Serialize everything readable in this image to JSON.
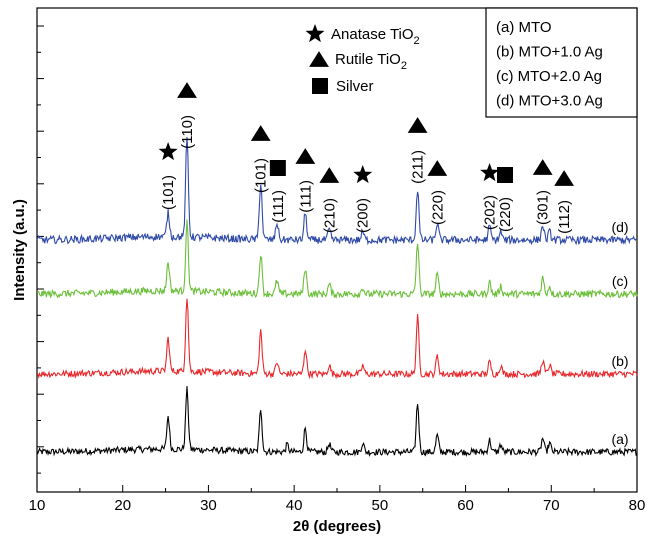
{
  "chart_data": {
    "type": "line",
    "xlabel": "2θ (degrees)",
    "ylabel": "Intensity (a.u.)",
    "xlim": [
      10,
      80
    ],
    "x_ticks": [
      "10",
      "20",
      "30",
      "40",
      "50",
      "60",
      "70",
      "80"
    ],
    "y_ticks_labeled": false,
    "series": [
      {
        "key": "a",
        "name": "(a)",
        "color": "#000000",
        "peaks": [
          [
            25.3,
            0.55
          ],
          [
            27.5,
            1.0
          ],
          [
            36.1,
            0.72
          ],
          [
            39.2,
            0.12
          ],
          [
            41.3,
            0.4
          ],
          [
            44.1,
            0.14
          ],
          [
            48.0,
            0.15
          ],
          [
            54.4,
            0.82
          ],
          [
            56.7,
            0.28
          ],
          [
            62.8,
            0.2
          ],
          [
            64.1,
            0.12
          ],
          [
            69.0,
            0.23
          ],
          [
            69.8,
            0.15
          ]
        ]
      },
      {
        "key": "b",
        "name": "(b)",
        "color": "#e8282c",
        "peaks": [
          [
            25.3,
            0.55
          ],
          [
            27.5,
            1.25
          ],
          [
            36.1,
            0.72
          ],
          [
            38.0,
            0.2
          ],
          [
            41.3,
            0.42
          ],
          [
            44.1,
            0.15
          ],
          [
            48.0,
            0.14
          ],
          [
            54.4,
            0.95
          ],
          [
            56.7,
            0.3
          ],
          [
            62.8,
            0.2
          ],
          [
            64.1,
            0.14
          ],
          [
            69.0,
            0.23
          ],
          [
            69.8,
            0.15
          ]
        ]
      },
      {
        "key": "c",
        "name": "(c)",
        "color": "#6cbf3a",
        "peaks": [
          [
            25.3,
            0.45
          ],
          [
            27.5,
            1.05
          ],
          [
            36.1,
            0.62
          ],
          [
            38.0,
            0.2
          ],
          [
            41.3,
            0.4
          ],
          [
            44.1,
            0.15
          ],
          [
            48.0,
            0.1
          ],
          [
            54.4,
            0.8
          ],
          [
            56.7,
            0.3
          ],
          [
            62.8,
            0.18
          ],
          [
            64.1,
            0.12
          ],
          [
            69.0,
            0.25
          ],
          [
            69.8,
            0.12
          ]
        ]
      },
      {
        "key": "d",
        "name": "(d)",
        "color": "#2f4aa8",
        "peaks": [
          [
            25.3,
            0.35
          ],
          [
            27.5,
            1.45
          ],
          [
            36.1,
            0.85
          ],
          [
            38.0,
            0.25
          ],
          [
            41.3,
            0.4
          ],
          [
            44.1,
            0.15
          ],
          [
            48.0,
            0.12
          ],
          [
            54.4,
            0.75
          ],
          [
            56.7,
            0.25
          ],
          [
            62.8,
            0.2
          ],
          [
            64.1,
            0.12
          ],
          [
            69.0,
            0.22
          ],
          [
            69.8,
            0.12
          ]
        ]
      }
    ],
    "trace_labels": [
      {
        "key": "d",
        "text": "(d)"
      },
      {
        "key": "c",
        "text": "(c)"
      },
      {
        "key": "b",
        "text": "(b)"
      },
      {
        "key": "a",
        "text": "(a)"
      }
    ],
    "peak_annotations": [
      {
        "x": 25.3,
        "hkl": "(101)",
        "phase": "anatase"
      },
      {
        "x": 27.5,
        "hkl": "(110)",
        "phase": "rutile"
      },
      {
        "x": 36.1,
        "hkl": "(101)",
        "phase": "rutile"
      },
      {
        "x": 38.1,
        "hkl": "(111)",
        "phase": "silver"
      },
      {
        "x": 41.3,
        "hkl": "(111)",
        "phase": "rutile"
      },
      {
        "x": 44.1,
        "hkl": "(210)",
        "phase": "rutile"
      },
      {
        "x": 48.0,
        "hkl": "(200)",
        "phase": "anatase"
      },
      {
        "x": 54.4,
        "hkl": "(211)",
        "phase": "rutile"
      },
      {
        "x": 56.7,
        "hkl": "(220)",
        "phase": "rutile"
      },
      {
        "x": 62.8,
        "hkl": "(202)",
        "phase": "anatase"
      },
      {
        "x": 64.6,
        "hkl": "(220)",
        "phase": "silver"
      },
      {
        "x": 69.0,
        "hkl": "(301)",
        "phase": "rutile"
      },
      {
        "x": 71.5,
        "hkl": "(112)",
        "phase": "rutile"
      }
    ],
    "symbol_legend": [
      {
        "symbol": "star",
        "text": "Anatase TiO",
        "sub": "2"
      },
      {
        "symbol": "triangle",
        "text": "Rutile TiO",
        "sub": "2"
      },
      {
        "symbol": "square",
        "text": "Silver",
        "sub": ""
      }
    ],
    "legend_box": [
      "(a) MTO",
      "(b) MTO+1.0 Ag",
      "(c) MTO+2.0 Ag",
      "(d) MTO+3.0 Ag"
    ],
    "legend_position": "top-right",
    "grid": false
  }
}
